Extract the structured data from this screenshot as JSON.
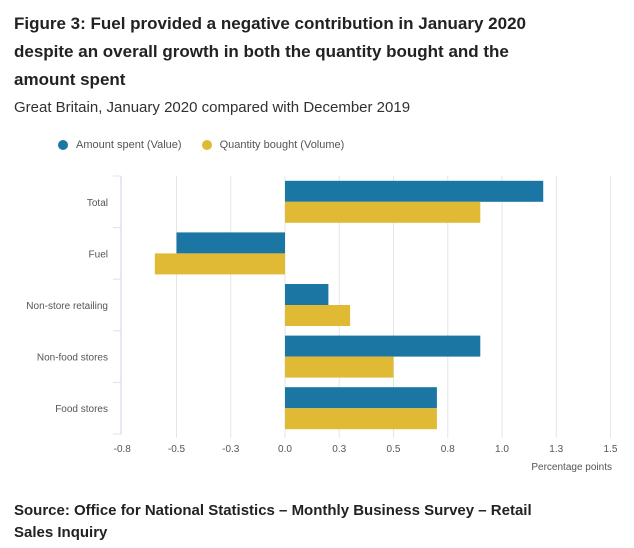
{
  "title": "Figure 3: Fuel provided a negative contribution in January 2020 despite an overall growth in both the quantity bought and the amount spent",
  "subtitle": "Great Britain, January 2020 compared with December 2019",
  "source": "Source: Office for National Statistics – Monthly Business Survey – Retail Sales Inquiry",
  "chart_data": {
    "type": "bar",
    "orientation": "horizontal",
    "title": "Figure 3: Fuel provided a negative contribution in January 2020 despite an overall growth in both the quantity bought and the amount spent",
    "subtitle": "Great Britain, January 2020 compared with December 2019",
    "categories": [
      "Total",
      "Fuel",
      "Non-store retailing",
      "Non-food stores",
      "Food stores"
    ],
    "series": [
      {
        "name": "Amount spent (Value)",
        "color": "#1b76a3",
        "values": [
          1.19,
          -0.5,
          0.2,
          0.9,
          0.7
        ]
      },
      {
        "name": "Quantity bought (Volume)",
        "color": "#e0b935",
        "values": [
          0.9,
          -0.6,
          0.3,
          0.5,
          0.7
        ]
      }
    ],
    "xlabel": "Percentage points",
    "ylabel": "",
    "xlim": [
      -0.75,
      1.5
    ],
    "xticks": [
      -0.75,
      -0.5,
      -0.25,
      0,
      0.25,
      0.5,
      0.75,
      1.0,
      1.25,
      1.5
    ],
    "xtick_labels": [
      "-0.8",
      "-0.5",
      "-0.3",
      "0.0",
      "0.3",
      "0.5",
      "0.8",
      "1.0",
      "1.3",
      "1.5"
    ],
    "grid": true,
    "legend_position": "top-left"
  }
}
